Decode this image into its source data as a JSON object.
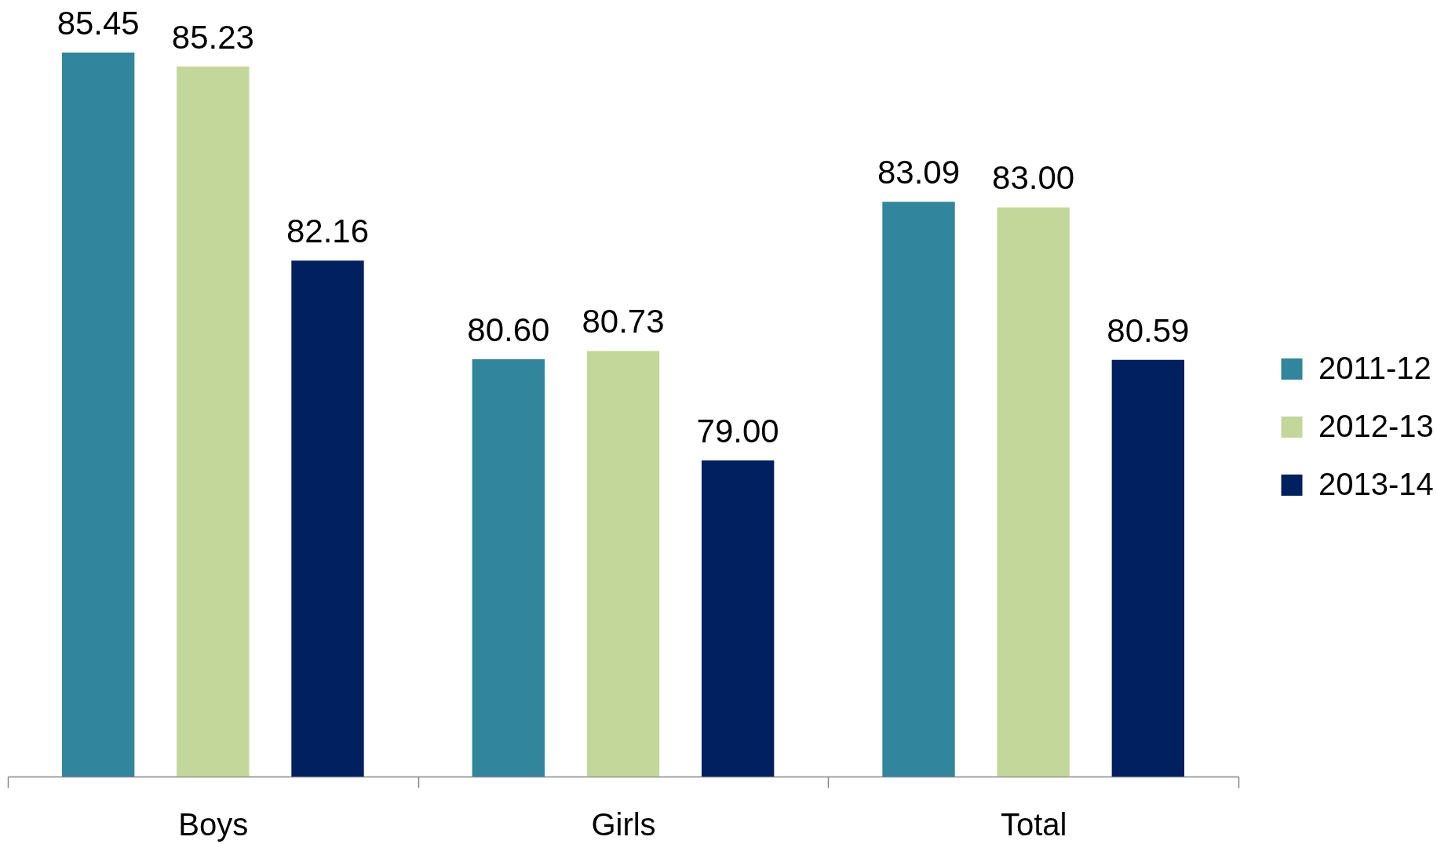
{
  "chart_data": {
    "type": "bar",
    "categories": [
      "Boys",
      "Girls",
      "Total"
    ],
    "series": [
      {
        "name": "2011-12",
        "color": "#31859c",
        "values": [
          85.45,
          80.6,
          83.09
        ],
        "value_labels": [
          "85.45",
          "80.60",
          "83.09"
        ]
      },
      {
        "name": "2012-13",
        "color": "#c4d79b",
        "values": [
          85.23,
          80.73,
          83.0
        ],
        "value_labels": [
          "85.23",
          "80.73",
          "83.00"
        ]
      },
      {
        "name": "2013-14",
        "color": "#002060",
        "values": [
          82.16,
          79.0,
          80.59
        ],
        "value_labels": [
          "82.16",
          "79.00",
          "80.59"
        ]
      }
    ],
    "ylim": [
      74,
      85.45
    ],
    "legend": "right",
    "tick_labels": "x"
  }
}
